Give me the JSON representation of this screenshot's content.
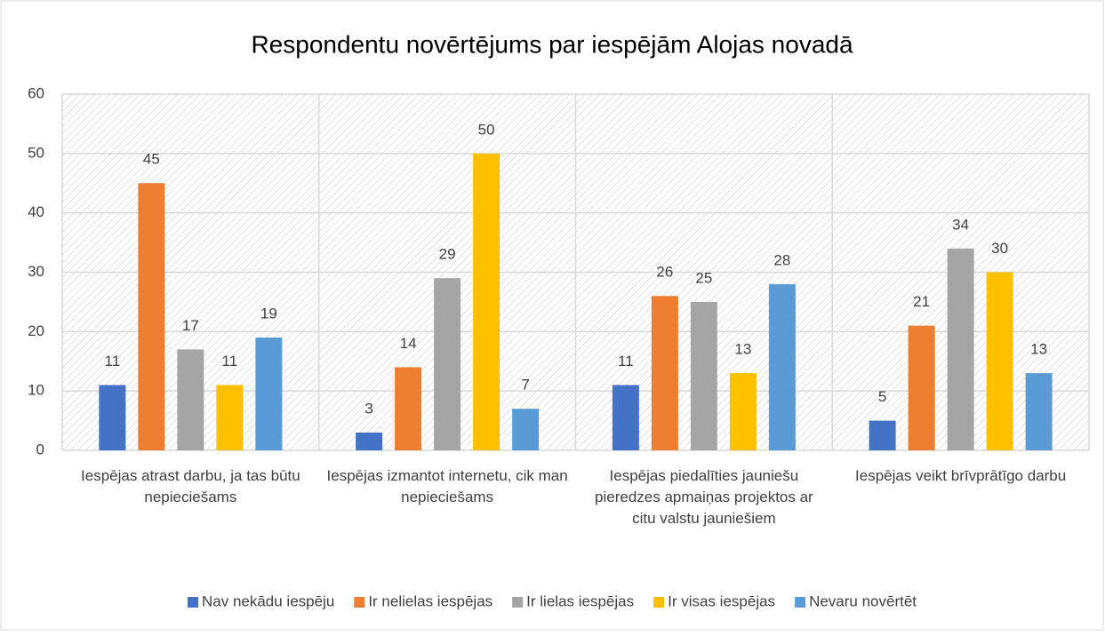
{
  "chart_data": {
    "type": "bar",
    "title": "Respondentu novērtējums par iespējām Alojas novadā",
    "categories": [
      "Iespējas atrast darbu, ja tas būtu nepieciešams",
      "Iespējas izmantot internetu, cik man nepieciešams",
      "Iespējas piedalīties jauniešu pieredzes apmaiņas projektos ar citu valstu jauniešiem",
      "Iespējas veikt brīvprātīgo darbu"
    ],
    "series": [
      {
        "name": "Nav nekādu iespēju",
        "color": "#4472c4",
        "values": [
          11,
          3,
          11,
          5
        ]
      },
      {
        "name": "Ir nelielas iespējas",
        "color": "#ed7d31",
        "values": [
          45,
          14,
          26,
          21
        ]
      },
      {
        "name": "Ir lielas iespējas",
        "color": "#a5a5a5",
        "values": [
          17,
          29,
          25,
          34
        ]
      },
      {
        "name": "Ir visas iespējas",
        "color": "#ffc000",
        "values": [
          11,
          50,
          13,
          30
        ]
      },
      {
        "name": "Nevaru novērtēt",
        "color": "#5b9bd5",
        "values": [
          19,
          7,
          28,
          13
        ]
      }
    ],
    "ylim": [
      0,
      60
    ],
    "yticks": [
      0,
      10,
      20,
      30,
      40,
      50,
      60
    ],
    "grid": true,
    "legend": "bottom"
  }
}
